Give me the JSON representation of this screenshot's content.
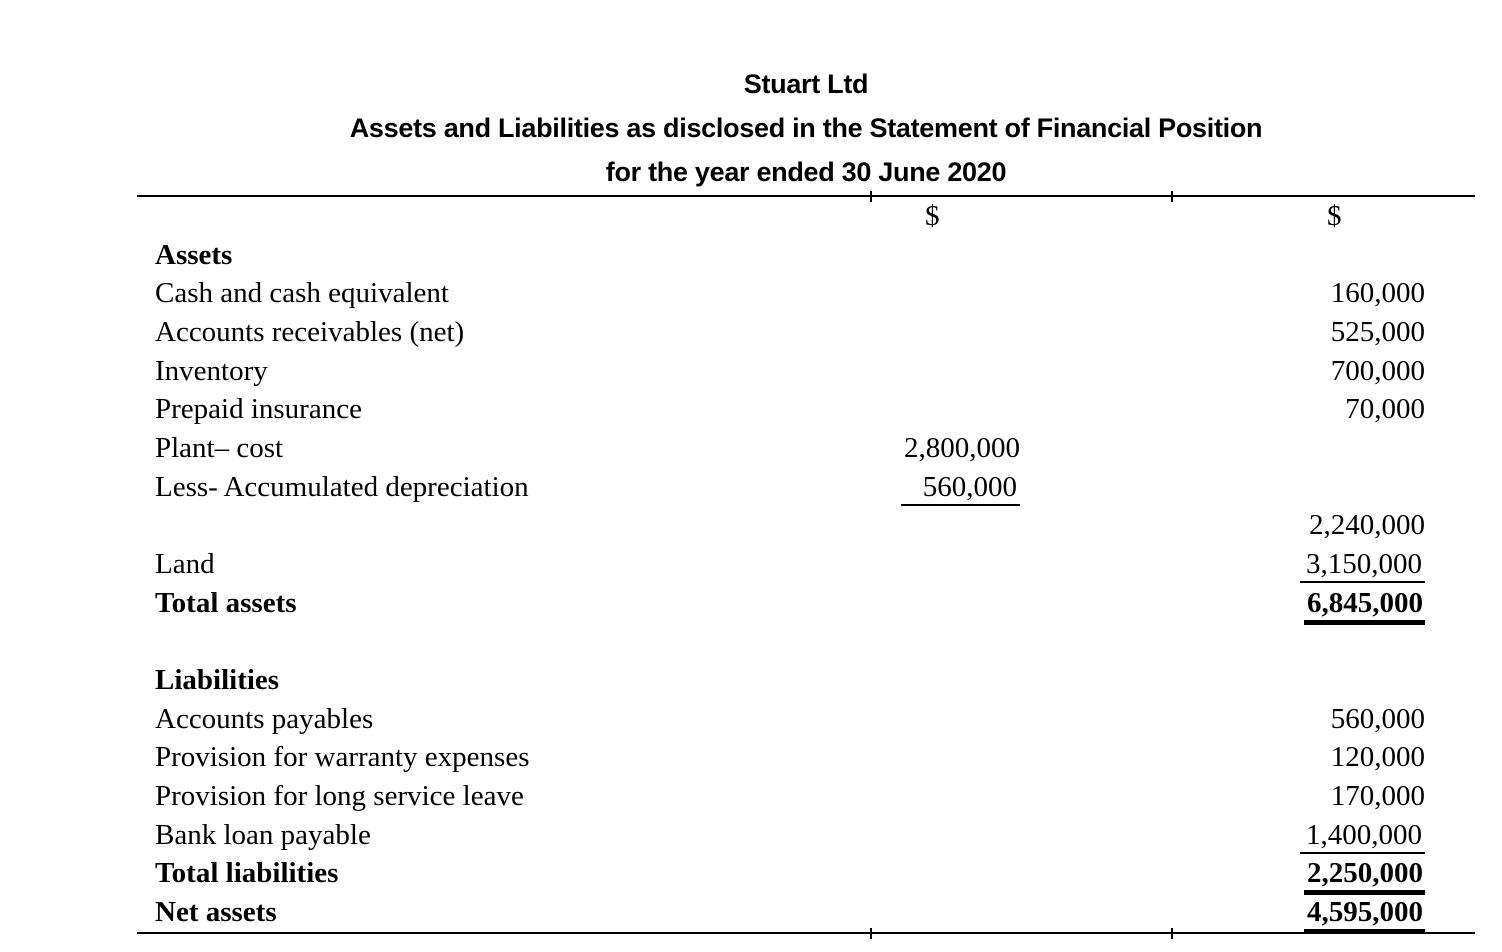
{
  "colors": {
    "text": "#000000",
    "background": "#ffffff"
  },
  "title": {
    "company": "Stuart Ltd",
    "statement": "Assets and Liabilities as disclosed in the Statement of Financial Position",
    "period": "for the year ended 30 June 2020"
  },
  "table": {
    "columns": {
      "label": "",
      "col1_header": "$",
      "col2_header": "$"
    },
    "rows": [
      {
        "label": "Assets",
        "label_bold": true,
        "col1": "",
        "col2": ""
      },
      {
        "label": "Cash and cash equivalent",
        "col1": "",
        "col2": "160,000"
      },
      {
        "label": "Accounts receivables (net)",
        "col1": "",
        "col2": "525,000"
      },
      {
        "label": "Inventory",
        "col1": "",
        "col2": "700,000"
      },
      {
        "label": "Prepaid insurance",
        "col1": "",
        "col2": "70,000"
      },
      {
        "label": "Plant– cost",
        "col1": "2,800,000",
        "col2": ""
      },
      {
        "label": "Less- Accumulated depreciation",
        "col1": "560,000",
        "col1_underline": "thin",
        "col2": ""
      },
      {
        "label": "",
        "col1": "",
        "col2": "2,240,000"
      },
      {
        "label": "Land",
        "col1": "",
        "col2": "3,150,000",
        "col2_underline": "thin"
      },
      {
        "label": "Total assets",
        "label_bold": true,
        "col1": "",
        "col2": "6,845,000",
        "col2_bold": true,
        "col2_underline": "thick"
      },
      {
        "label": "",
        "col1": "",
        "col2": ""
      },
      {
        "label": "Liabilities",
        "label_bold": true,
        "col1": "",
        "col2": ""
      },
      {
        "label": "Accounts payables",
        "col1": "",
        "col2": "560,000"
      },
      {
        "label": "Provision for warranty expenses",
        "col1": "",
        "col2": "120,000"
      },
      {
        "label": "Provision for long service leave",
        "col1": "",
        "col2": "170,000"
      },
      {
        "label": "Bank loan payable",
        "col1": "",
        "col2": "1,400,000",
        "col2_underline": "thin"
      },
      {
        "label": "Total liabilities",
        "label_bold": true,
        "col1": "",
        "col2": "2,250,000",
        "col2_bold": true,
        "col2_underline": "thick"
      },
      {
        "label": "Net assets",
        "label_bold": true,
        "col1": "",
        "col2": "4,595,000",
        "col2_bold": true,
        "col2_underline": "thick"
      }
    ]
  }
}
